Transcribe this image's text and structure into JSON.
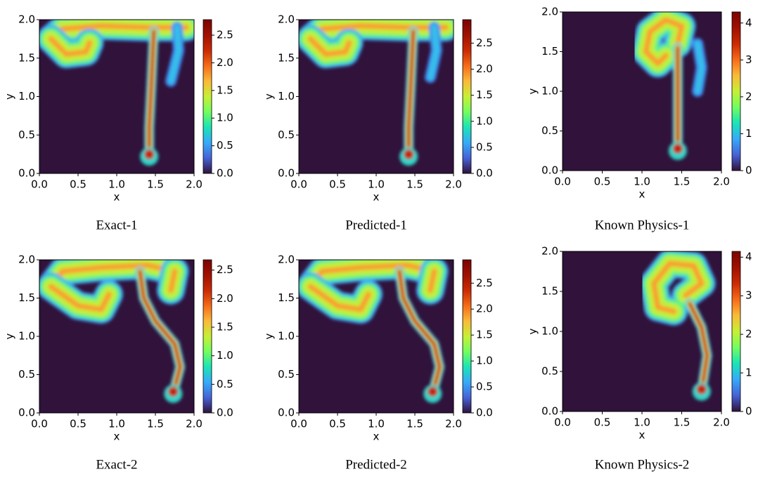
{
  "chart_data": [
    {
      "type": "heatmap",
      "caption": "Exact-1",
      "xlabel": "x",
      "ylabel": "y",
      "xlim": [
        0,
        2
      ],
      "ylim": [
        0,
        2
      ],
      "xticks": [
        {
          "value": 0,
          "label": "0.0"
        },
        0.5,
        {
          "value": 1,
          "label": "1.0"
        },
        1.5,
        {
          "value": 2,
          "label": "2.0"
        }
      ],
      "yticks": [
        {
          "value": 0,
          "label": "0.0"
        },
        0.5,
        {
          "value": 1,
          "label": "1.0"
        },
        1.5,
        {
          "value": 2,
          "label": "2.0"
        }
      ],
      "clim": [
        0,
        2.78
      ],
      "cticks": [
        {
          "value": 0,
          "label": "0.0"
        },
        0.5,
        {
          "value": 1,
          "label": "1.0"
        },
        1.5,
        {
          "value": 2,
          "label": "2.0"
        },
        2.5
      ]
    },
    {
      "type": "heatmap",
      "caption": "Predicted-1",
      "xlabel": "x",
      "ylabel": "y",
      "xlim": [
        0,
        2
      ],
      "ylim": [
        0,
        2
      ],
      "xticks": [
        {
          "value": 0,
          "label": "0.0"
        },
        0.5,
        {
          "value": 1,
          "label": "1.0"
        },
        1.5,
        {
          "value": 2,
          "label": "2.0"
        }
      ],
      "yticks": [
        {
          "value": 0,
          "label": "0.0"
        },
        0.5,
        {
          "value": 1,
          "label": "1.0"
        },
        1.5,
        {
          "value": 2,
          "label": "2.0"
        }
      ],
      "clim": [
        0,
        2.95
      ],
      "cticks": [
        {
          "value": 0,
          "label": "0.0"
        },
        0.5,
        {
          "value": 1,
          "label": "1.0"
        },
        1.5,
        {
          "value": 2,
          "label": "2.0"
        },
        2.5
      ]
    },
    {
      "type": "heatmap",
      "caption": "Known Physics-1",
      "xlabel": "x",
      "ylabel": "y",
      "xlim": [
        0,
        2
      ],
      "ylim": [
        0,
        2
      ],
      "xticks": [
        {
          "value": 0,
          "label": "0.0"
        },
        0.5,
        {
          "value": 1,
          "label": "1.0"
        },
        1.5,
        {
          "value": 2,
          "label": "2.0"
        }
      ],
      "yticks": [
        {
          "value": 0,
          "label": "0.0"
        },
        0.5,
        {
          "value": 1,
          "label": "1.0"
        },
        1.5,
        {
          "value": 2,
          "label": "2.0"
        }
      ],
      "clim": [
        0,
        4.3
      ],
      "cticks": [
        0,
        1,
        2,
        3,
        4
      ]
    },
    {
      "type": "heatmap",
      "caption": "Exact-2",
      "xlabel": "x",
      "ylabel": "y",
      "xlim": [
        0,
        2
      ],
      "ylim": [
        0,
        2
      ],
      "xticks": [
        {
          "value": 0,
          "label": "0.0"
        },
        0.5,
        {
          "value": 1,
          "label": "1.0"
        },
        1.5,
        {
          "value": 2,
          "label": "2.0"
        }
      ],
      "yticks": [
        {
          "value": 0,
          "label": "0.0"
        },
        0.5,
        {
          "value": 1,
          "label": "1.0"
        },
        1.5,
        {
          "value": 2,
          "label": "2.0"
        }
      ],
      "clim": [
        0,
        2.68
      ],
      "cticks": [
        {
          "value": 0,
          "label": "0.0"
        },
        0.5,
        {
          "value": 1,
          "label": "1.0"
        },
        1.5,
        {
          "value": 2,
          "label": "2.0"
        },
        2.5
      ]
    },
    {
      "type": "heatmap",
      "caption": "Predicted-2",
      "xlabel": "x",
      "ylabel": "y",
      "xlim": [
        0,
        2
      ],
      "ylim": [
        0,
        2
      ],
      "xticks": [
        {
          "value": 0,
          "label": "0.0"
        },
        0.5,
        {
          "value": 1,
          "label": "1.0"
        },
        1.5,
        {
          "value": 2,
          "label": "2.0"
        }
      ],
      "yticks": [
        {
          "value": 0,
          "label": "0.0"
        },
        0.5,
        {
          "value": 1,
          "label": "1.0"
        },
        1.5,
        {
          "value": 2,
          "label": "2.0"
        }
      ],
      "clim": [
        0,
        2.95
      ],
      "cticks": [
        {
          "value": 0,
          "label": "0.0"
        },
        0.5,
        {
          "value": 1,
          "label": "1.0"
        },
        1.5,
        {
          "value": 2,
          "label": "2.0"
        },
        2.5
      ]
    },
    {
      "type": "heatmap",
      "caption": "Known Physics-2",
      "xlabel": "x",
      "ylabel": "y",
      "xlim": [
        0,
        2
      ],
      "ylim": [
        0,
        2
      ],
      "xticks": [
        {
          "value": 0,
          "label": "0.0"
        },
        0.5,
        {
          "value": 1,
          "label": "1.0"
        },
        1.5,
        {
          "value": 2,
          "label": "2.0"
        }
      ],
      "yticks": [
        {
          "value": 0,
          "label": "0.0"
        },
        0.5,
        {
          "value": 1,
          "label": "1.0"
        },
        1.5,
        {
          "value": 2,
          "label": "2.0"
        }
      ],
      "clim": [
        0,
        4.15
      ],
      "cticks": [
        0,
        1,
        2,
        3,
        4
      ]
    }
  ]
}
